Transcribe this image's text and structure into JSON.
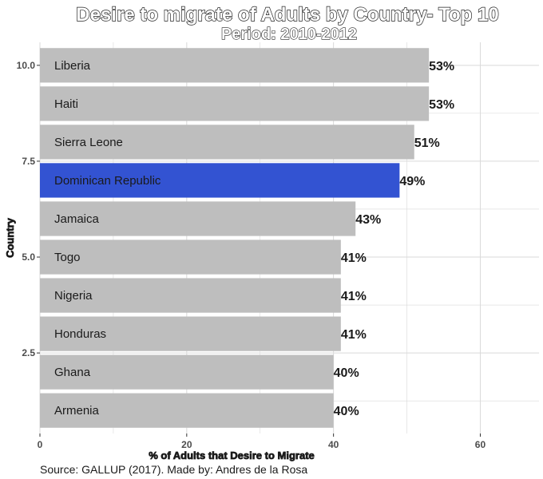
{
  "chart_data": {
    "type": "bar",
    "orientation": "horizontal",
    "title": "Desire to migrate of Adults by Country- Top 10",
    "subtitle": "Period: 2010-2012",
    "xlabel": "% of Adults that Desire to Migrate",
    "ylabel": "Country",
    "caption": "Source: GALLUP (2017). Made by: Andres de la Rosa",
    "xlim": [
      0,
      68
    ],
    "x_ticks": [
      0,
      20,
      40,
      60
    ],
    "ylim": [
      0.4,
      10.6
    ],
    "y_ticks": [
      2.5,
      5.0,
      7.5,
      10.0
    ],
    "y_tick_labels": [
      "2.5",
      "5.0",
      "7.5",
      "10.0"
    ],
    "grid": true,
    "bars": [
      {
        "category": "Liberia",
        "position": 10,
        "value": 53,
        "label": "53%",
        "color": "#bebebe"
      },
      {
        "category": "Haiti",
        "position": 9,
        "value": 53,
        "label": "53%",
        "color": "#bebebe"
      },
      {
        "category": "Sierra Leone",
        "position": 8,
        "value": 51,
        "label": "51%",
        "color": "#bebebe"
      },
      {
        "category": "Dominican Republic",
        "position": 7,
        "value": 49,
        "label": "49%",
        "color": "#3353d2"
      },
      {
        "category": "Jamaica",
        "position": 6,
        "value": 43,
        "label": "43%",
        "color": "#bebebe"
      },
      {
        "category": "Togo",
        "position": 5,
        "value": 41,
        "label": "41%",
        "color": "#bebebe"
      },
      {
        "category": "Nigeria",
        "position": 4,
        "value": 41,
        "label": "41%",
        "color": "#bebebe"
      },
      {
        "category": "Honduras",
        "position": 3,
        "value": 41,
        "label": "41%",
        "color": "#bebebe"
      },
      {
        "category": "Ghana",
        "position": 2,
        "value": 40,
        "label": "40%",
        "color": "#bebebe"
      },
      {
        "category": "Armenia",
        "position": 1,
        "value": 40,
        "label": "40%",
        "color": "#bebebe"
      }
    ],
    "colors": {
      "default_bar": "#bebebe",
      "highlight_bar": "#3353d2",
      "grid": "#d9d9d9"
    }
  }
}
